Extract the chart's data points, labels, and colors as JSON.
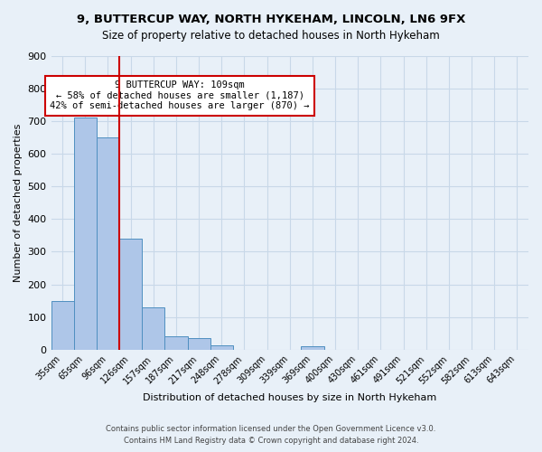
{
  "title1": "9, BUTTERCUP WAY, NORTH HYKEHAM, LINCOLN, LN6 9FX",
  "title2": "Size of property relative to detached houses in North Hykeham",
  "xlabel": "Distribution of detached houses by size in North Hykeham",
  "ylabel": "Number of detached properties",
  "footer1": "Contains HM Land Registry data © Crown copyright and database right 2024.",
  "footer2": "Contains public sector information licensed under the Open Government Licence v3.0.",
  "annotation_line1": "9 BUTTERCUP WAY: 109sqm",
  "annotation_line2": "← 58% of detached houses are smaller (1,187)",
  "annotation_line3": "42% of semi-detached houses are larger (870) →",
  "bar_values": [
    150,
    710,
    650,
    340,
    130,
    40,
    35,
    12,
    0,
    0,
    0,
    10,
    0,
    0,
    0,
    0,
    0,
    0,
    0,
    0,
    0
  ],
  "categories": [
    "35sqm",
    "65sqm",
    "96sqm",
    "126sqm",
    "157sqm",
    "187sqm",
    "217sqm",
    "248sqm",
    "278sqm",
    "309sqm",
    "339sqm",
    "369sqm",
    "400sqm",
    "430sqm",
    "461sqm",
    "491sqm",
    "521sqm",
    "552sqm",
    "582sqm",
    "613sqm",
    "643sqm"
  ],
  "bar_color": "#aec6e8",
  "bar_edge_color": "#4f8fc0",
  "red_line_color": "#cc0000",
  "annotation_box_color": "#ffffff",
  "annotation_box_edge_color": "#cc0000",
  "grid_color": "#c8d8e8",
  "background_color": "#e8f0f8",
  "ylim": [
    0,
    900
  ],
  "yticks": [
    0,
    100,
    200,
    300,
    400,
    500,
    600,
    700,
    800,
    900
  ]
}
